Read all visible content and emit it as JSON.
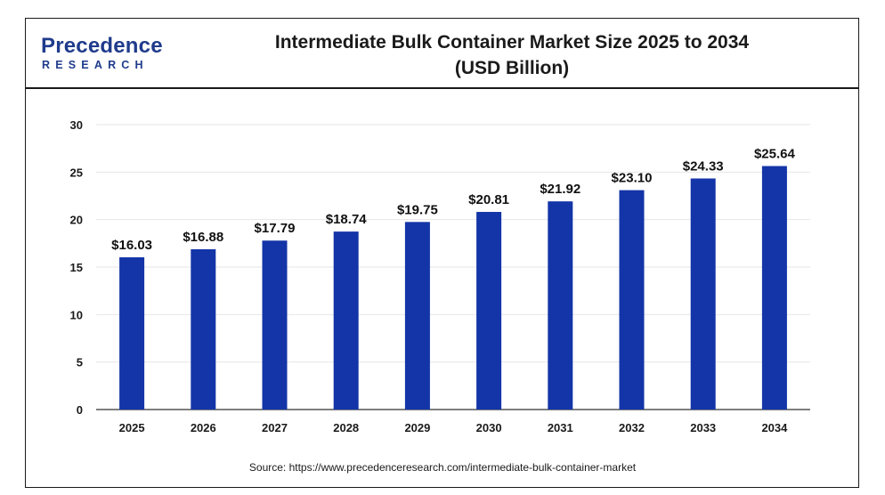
{
  "header": {
    "logo_word": "Precedence",
    "logo_sub": "RESEARCH",
    "title_line1": "Intermediate Bulk Container Market Size 2025 to 2034",
    "title_line2": "(USD Billion)"
  },
  "source": "Source: https://www.precedenceresearch.com/intermediate-bulk-container-market",
  "colors": {
    "bar": "#1335a8",
    "grid": "#e6e6e6",
    "axis": "#1a1a1a",
    "logo": "#1f3b8c"
  },
  "chart_data": {
    "type": "bar",
    "categories": [
      "2025",
      "2026",
      "2027",
      "2028",
      "2029",
      "2030",
      "2031",
      "2032",
      "2033",
      "2034"
    ],
    "values": [
      16.03,
      16.88,
      17.79,
      18.74,
      19.75,
      20.81,
      21.92,
      23.1,
      24.33,
      25.64
    ],
    "data_labels": [
      "$16.03",
      "$16.88",
      "$17.79",
      "$18.74",
      "$19.75",
      "$20.81",
      "$21.92",
      "$23.10",
      "$24.33",
      "$25.64"
    ],
    "yticks": [
      "0",
      "5",
      "10",
      "15",
      "20",
      "25",
      "30"
    ],
    "ylim": [
      0,
      30
    ],
    "grid": true,
    "legend": "none"
  }
}
